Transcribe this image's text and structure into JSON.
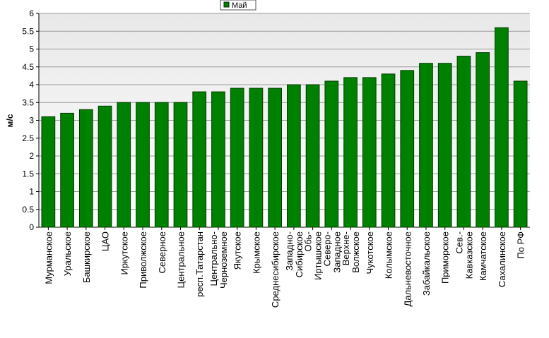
{
  "chart_data": {
    "type": "bar",
    "ylabel": "м/с",
    "ylim": [
      0,
      6
    ],
    "yticks": [
      "0",
      "0.5",
      "1",
      "1.5",
      "2",
      "2.5",
      "3",
      "3.5",
      "4",
      "4.5",
      "5",
      "5.5",
      "6"
    ],
    "grid": true,
    "legend_position": "top-center",
    "series": [
      {
        "name": "Май",
        "color": "#008000",
        "values": [
          3.1,
          3.2,
          3.3,
          3.4,
          3.5,
          3.5,
          3.5,
          3.5,
          3.8,
          3.8,
          3.9,
          3.9,
          3.9,
          4.0,
          4.0,
          4.1,
          4.2,
          4.2,
          4.3,
          4.4,
          4.6,
          4.6,
          4.8,
          4.9,
          5.6,
          4.1
        ]
      }
    ],
    "categories": [
      [
        "Мурманское"
      ],
      [
        "Уральское"
      ],
      [
        "Башкирское"
      ],
      [
        "ЦАО"
      ],
      [
        "Иркутское"
      ],
      [
        "Приволжское"
      ],
      [
        "Северное"
      ],
      [
        "Центральное"
      ],
      [
        "респ.Татарстан"
      ],
      [
        "Центрально-",
        "Черноземное"
      ],
      [
        "Якутское"
      ],
      [
        "Крымское"
      ],
      [
        "Среднесибирское"
      ],
      [
        "Западно-",
        "Сибирское"
      ],
      [
        "Обь-",
        "Иртышское"
      ],
      [
        "Северо-",
        "Западное"
      ],
      [
        "Верхне-",
        "Волжское"
      ],
      [
        "Чукотское"
      ],
      [
        "Колымское"
      ],
      [
        "Дальневосточное"
      ],
      [
        "Забайкальское"
      ],
      [
        "Приморское"
      ],
      [
        "Сев.-",
        "Кавказское"
      ],
      [
        "Камчатское"
      ],
      [
        "Сахалинское"
      ],
      [
        "По РФ"
      ]
    ]
  }
}
